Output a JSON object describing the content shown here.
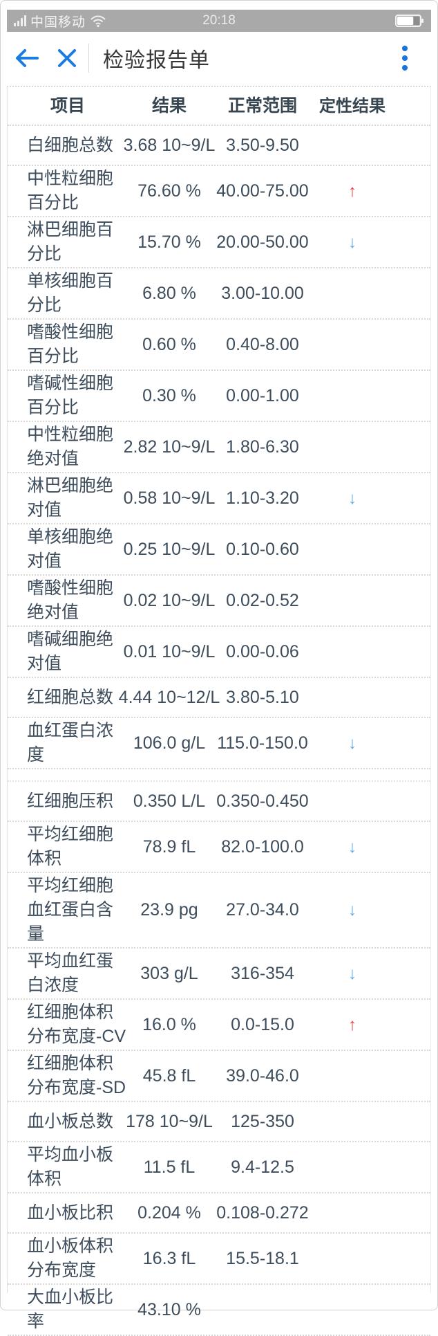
{
  "status_bar": {
    "carrier": "中国移动",
    "time": "20:18"
  },
  "nav": {
    "title": "检验报告单"
  },
  "table": {
    "headers": [
      "项目",
      "结果",
      "正常范围",
      "定性结果"
    ],
    "flag_icons": {
      "high": "↑",
      "low": "↓"
    },
    "colors": {
      "high": "#e8433f",
      "low": "#5aa9e6"
    },
    "section_break_after_index": 12,
    "rows": [
      {
        "name": "白细胞总数",
        "result": "3.68 10~9/L",
        "range": "3.50-9.50",
        "flag": ""
      },
      {
        "name": "中性粒细胞百分比",
        "result": "76.60 %",
        "range": "40.00-75.00",
        "flag": "high"
      },
      {
        "name": "淋巴细胞百分比",
        "result": "15.70 %",
        "range": "20.00-50.00",
        "flag": "low"
      },
      {
        "name": "单核细胞百分比",
        "result": "6.80 %",
        "range": "3.00-10.00",
        "flag": ""
      },
      {
        "name": "嗜酸性细胞百分比",
        "result": "0.60 %",
        "range": "0.40-8.00",
        "flag": ""
      },
      {
        "name": "嗜碱性细胞百分比",
        "result": "0.30 %",
        "range": "0.00-1.00",
        "flag": ""
      },
      {
        "name": "中性粒细胞绝对值",
        "result": "2.82 10~9/L",
        "range": "1.80-6.30",
        "flag": ""
      },
      {
        "name": "淋巴细胞绝对值",
        "result": "0.58 10~9/L",
        "range": "1.10-3.20",
        "flag": "low"
      },
      {
        "name": "单核细胞绝对值",
        "result": "0.25 10~9/L",
        "range": "0.10-0.60",
        "flag": ""
      },
      {
        "name": "嗜酸性细胞绝对值",
        "result": "0.02 10~9/L",
        "range": "0.02-0.52",
        "flag": ""
      },
      {
        "name": "嗜碱细胞绝对值",
        "result": "0.01 10~9/L",
        "range": "0.00-0.06",
        "flag": ""
      },
      {
        "name": "红细胞总数",
        "result": "4.44 10~12/L",
        "range": "3.80-5.10",
        "flag": ""
      },
      {
        "name": "血红蛋白浓度",
        "result": "106.0 g/L",
        "range": "115.0-150.0",
        "flag": "low"
      },
      {
        "name": "红细胞压积",
        "result": "0.350 L/L",
        "range": "0.350-0.450",
        "flag": ""
      },
      {
        "name": "平均红细胞体积",
        "result": "78.9 fL",
        "range": "82.0-100.0",
        "flag": "low"
      },
      {
        "name": "平均红细胞血红蛋白含量",
        "result": "23.9 pg",
        "range": "27.0-34.0",
        "flag": "low"
      },
      {
        "name": "平均血红蛋白浓度",
        "result": "303 g/L",
        "range": "316-354",
        "flag": "low"
      },
      {
        "name": "红细胞体积分布宽度-CV",
        "result": "16.0 %",
        "range": "0.0-15.0",
        "flag": "high"
      },
      {
        "name": "红细胞体积分布宽度-SD",
        "result": "45.8 fL",
        "range": "39.0-46.0",
        "flag": ""
      },
      {
        "name": "血小板总数",
        "result": "178 10~9/L",
        "range": "125-350",
        "flag": ""
      },
      {
        "name": "平均血小板体积",
        "result": "11.5 fL",
        "range": "9.4-12.5",
        "flag": ""
      },
      {
        "name": "血小板比积",
        "result": "0.204 %",
        "range": "0.108-0.272",
        "flag": ""
      },
      {
        "name": "血小板体积分布宽度",
        "result": "16.3 fL",
        "range": "15.5-18.1",
        "flag": ""
      },
      {
        "name": "大血小板比率",
        "result": "43.10 %",
        "range": "",
        "flag": ""
      }
    ]
  }
}
